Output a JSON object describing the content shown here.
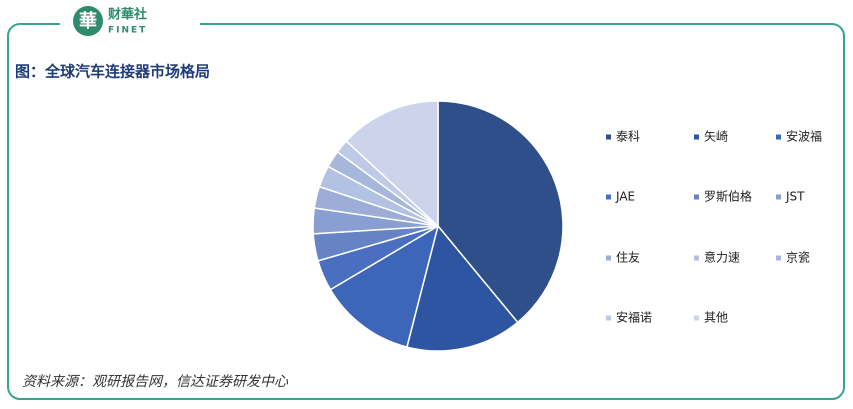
{
  "header": {
    "logo_mark": "華",
    "logo_name": "财華社",
    "logo_sub": "FINET"
  },
  "chart_data": {
    "type": "pie",
    "title": "图：全球汽车连接器市场格局",
    "categories": [
      "泰科",
      "矢崎",
      "安波福",
      "JAE",
      "罗斯伯格",
      "JST",
      "住友",
      "意力速",
      "京瓷",
      "安福诺",
      "其他"
    ],
    "values": [
      39,
      15,
      12.5,
      4,
      3.5,
      3.3,
      2.8,
      2.8,
      2.2,
      1.8,
      13.1
    ],
    "colors": [
      "#2f4f8a",
      "#2e55a2",
      "#3d66b8",
      "#4a6fc0",
      "#6683c6",
      "#8a9fd1",
      "#9cadd8",
      "#b3c1e2",
      "#a7b7dc",
      "#bfcae6",
      "#ccd3ea"
    ],
    "source": "资料来源：观研报告网，信达证券研发中心"
  }
}
